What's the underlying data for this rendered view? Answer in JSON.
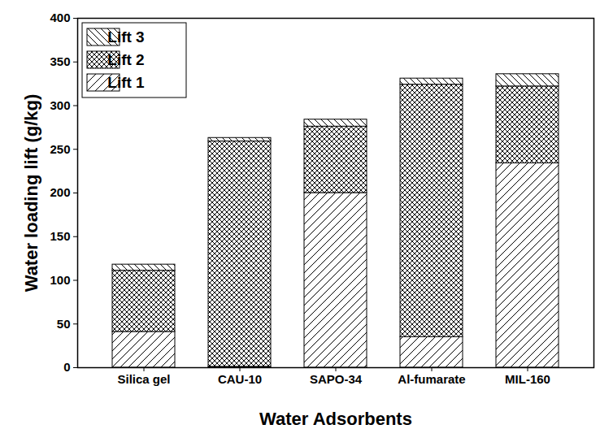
{
  "chart_data": {
    "type": "bar",
    "stacked": true,
    "x_label": "Water Adsorbents",
    "y_label": "Water loading lift (g/kg)",
    "categories": [
      "Silica gel",
      "CAU-10",
      "SAPO-34",
      "Al-fumarate",
      "MIL-160"
    ],
    "series": [
      {
        "name": "Lift 1",
        "color": "#000000",
        "values": [
          41,
          1,
          200,
          35,
          234
        ]
      },
      {
        "name": "Lift 2",
        "color": "#000000",
        "values": [
          70,
          258,
          76,
          289,
          88
        ]
      },
      {
        "name": "Lift 3",
        "color": "#000000",
        "values": [
          7,
          4,
          8,
          7,
          14
        ]
      }
    ],
    "ylim": [
      0,
      400
    ],
    "yticks": [
      0,
      50,
      100,
      150,
      200,
      250,
      300,
      350,
      400
    ],
    "grid": false,
    "legend": "top-left"
  }
}
